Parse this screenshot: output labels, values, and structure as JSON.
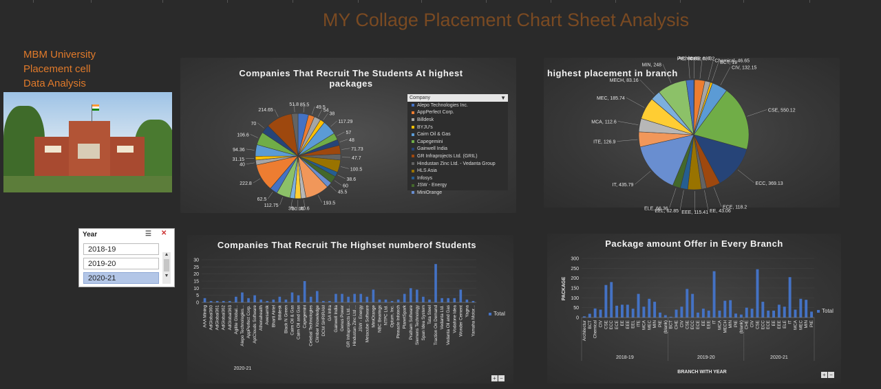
{
  "dashboard": {
    "title": "MY Collage Placement  Chart Sheet Analysis"
  },
  "sidebar": {
    "line1": "MBM University",
    "line2": "Placement cell",
    "line3": "Data   Analysis"
  },
  "slicer": {
    "title": "Year",
    "items": [
      "2018-19",
      "2019-20",
      "2020-21"
    ],
    "selected": "2020-21"
  },
  "palette": [
    "#4472c4",
    "#ed7d31",
    "#a5a5a5",
    "#ffc000",
    "#5b9bd5",
    "#70ad47",
    "#264478",
    "#9e480e",
    "#636363",
    "#997300",
    "#255e91",
    "#43682b",
    "#698ed0",
    "#f1975a",
    "#b7b7b7",
    "#ffcd33",
    "#7cafdd",
    "#8cc168"
  ],
  "chart_data": [
    {
      "type": "pie",
      "title": "Companies That Recruit The  Students At highest packages",
      "legend_header": "Company",
      "legend": [
        "Alepo Technologies Inc.",
        "AppPerfect Corp.",
        "Billdesk",
        "BYJU's",
        "Cairn Oil & Gas",
        "Capegemini",
        "Gainwell India",
        "GR Infraprojects Ltd. (GRIL)",
        "Hindustan Zinc Ltd. - Vedanta Group",
        "HLS Asia",
        "Infosys",
        "JSW - Energy",
        "MiniOrange"
      ],
      "values": [
        85.5,
        49.5,
        54,
        38,
        117.29,
        57,
        48,
        71.73,
        47.7,
        100.5,
        38.6,
        60,
        45.5,
        193.5,
        40.6,
        50.05,
        39,
        112.75,
        62.5,
        222.8,
        40,
        31.15,
        94.36,
        106.6,
        70,
        214.65,
        51.8
      ],
      "labels": [
        "85.5",
        "49.5",
        "54",
        "38",
        "117.29",
        "57",
        "48",
        "71.73",
        "47.7",
        "100.5",
        "38.6",
        "60",
        "45.5",
        "193.5",
        "40.6",
        "50.05",
        "39",
        "112.75",
        "62.5",
        "222.8",
        "40",
        "31.15",
        "94.36",
        "106.6",
        "70",
        "214.65",
        "51.8"
      ]
    },
    {
      "type": "pie",
      "title": "highest placement  in branch",
      "categories": [
        "Architecture",
        "CHE",
        "Chemical",
        "BCT",
        "CIV",
        "CSE",
        "ECC",
        "ECE",
        "EE",
        "EEE",
        "EEL",
        "ELE",
        "IT",
        "ITE",
        "MCA",
        "MEC",
        "MECH",
        "MIN",
        "PIE"
      ],
      "values": [
        6,
        88.02,
        46.65,
        19,
        132.15,
        550.12,
        369.13,
        118.2,
        43.06,
        115.41,
        62.85,
        66.36,
        435.79,
        126.9,
        112.6,
        185.74,
        83.16,
        248,
        64.85
      ],
      "labels": [
        "Architectur e, 6",
        "CHE, 88.02",
        "Chemical, 46.65",
        "BCT, 19",
        "CIV, 132.15",
        "CSE, 550.12",
        "ECC, 369.13",
        "ECE, 118.2",
        "EE, 43.06",
        "EEE, 115.41",
        "EEL, 62.85",
        "ELE, 66.36",
        "IT, 435.79",
        "ITE, 126.9",
        "MCA, 112.6",
        "MEC, 185.74",
        "MECH, 83.16",
        "MIN, 248",
        "PIE, 64.85"
      ]
    },
    {
      "type": "bar",
      "title": "Companies That Recruit The Highset numberof Students",
      "x_group": "2020-21",
      "series": [
        {
          "name": "Total"
        }
      ],
      "ylim": [
        0,
        30
      ],
      "yticks": [
        "0",
        "5",
        "10",
        "15",
        "20",
        "25",
        "30"
      ],
      "categories": [
        "AAA Mining",
        "AdGlobal360",
        "AdGlobal361",
        "AdGlobal362",
        "AdGlobal363",
        "Agilite Global...",
        "Alepo Technologies...",
        "AppPerfect Corp.",
        "AptClouds Software",
        "Athenahealth",
        "Awesamik",
        "Bharti Airtel",
        "Billdesk",
        "Black N Green",
        "Cairn Oil & Gas",
        "Cairn Oil and Gas",
        "Capegemini",
        "Celebal Technologies",
        "Climber Knowledge",
        "DCM SHRIRAM",
        "GA Infra",
        "Gainwell India",
        "Genus Power",
        "GR Infraprojects Ltd...",
        "Hindustan Zinc Ltd ...",
        "JSW - Energy",
        "Metacube Software",
        "MiniOrange",
        "NBC Bearings",
        "NTPC Ltd.",
        "Optum, Inc.",
        "Pinnacle Infotech",
        "PlanetSpark",
        "Pratham Software",
        "Siemens Technology",
        "Span Idea System",
        "Tata Steel",
        "Traction On Demand",
        "Vedanta Ltd.",
        "Vedanta Oil and Gas",
        "Vodafone Idea",
        "Wonder Cement",
        "Yagna",
        "Yamaha Motor..."
      ],
      "values": [
        3,
        1,
        1,
        1,
        1,
        4,
        7,
        3,
        5,
        2,
        1,
        2,
        4,
        2,
        7,
        5,
        15,
        4,
        8,
        1,
        1,
        6,
        6,
        4,
        6,
        6,
        4,
        9,
        2,
        2,
        1,
        2,
        6,
        10,
        9,
        4,
        2,
        27,
        3,
        3,
        3,
        9,
        2,
        1
      ]
    },
    {
      "type": "bar",
      "title": "Package amount Offer in Every Branch",
      "xlabel": "BRANCH WITH YEAR",
      "ylabel": "PACKAGE",
      "series": [
        {
          "name": "Total"
        }
      ],
      "ylim": [
        0,
        300
      ],
      "yticks": [
        "0",
        "50",
        "100",
        "150",
        "200",
        "250",
        "300"
      ],
      "groups": [
        {
          "name": "2018-19",
          "categories": [
            "Architectur",
            "BCT",
            "Chemical",
            "CIV",
            "CSE",
            "ECC",
            "ECE",
            "EE",
            "EEE",
            "EEL",
            "ITE",
            "MCA",
            "MEC",
            "MIN",
            "PIE",
            "(blank)"
          ],
          "values": [
            6,
            19,
            46,
            40,
            165,
            180,
            60,
            65,
            65,
            45,
            120,
            55,
            95,
            80,
            25,
            12
          ]
        },
        {
          "name": "2019-20",
          "categories": [
            "BCT",
            "CHE",
            "CIV",
            "CSE",
            "ECC",
            "ECE",
            "EE",
            "EEE",
            "IT",
            "MCA",
            "MECH",
            "MIN",
            "PIE",
            "(blank)"
          ],
          "values": [
            4,
            40,
            55,
            145,
            120,
            25,
            45,
            35,
            235,
            35,
            85,
            88,
            20,
            15
          ]
        },
        {
          "name": "2020-21",
          "categories": [
            "CHE",
            "CIV",
            "CSE",
            "ECC",
            "ECE",
            "EE",
            "EEE",
            "ELE",
            "IT",
            "MCA",
            "MEC",
            "MIN",
            "PIE"
          ],
          "values": [
            50,
            45,
            245,
            80,
            35,
            35,
            65,
            55,
            205,
            40,
            95,
            90,
            30
          ]
        }
      ]
    }
  ]
}
